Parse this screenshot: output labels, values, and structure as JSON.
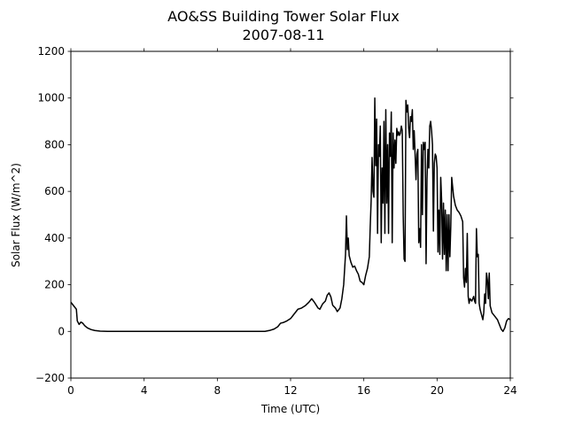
{
  "chart_data": {
    "type": "line",
    "title": "AO&SS Building Tower Solar Flux",
    "subtitle": "2007-08-11",
    "xlabel": "Time (UTC)",
    "ylabel": "Solar Flux (W/m^2)",
    "xlim": [
      0,
      24
    ],
    "ylim": [
      -200,
      1200
    ],
    "xticks": [
      0,
      4,
      8,
      12,
      16,
      20,
      24
    ],
    "yticks": [
      -200,
      0,
      200,
      400,
      600,
      800,
      1000,
      1200
    ],
    "grid": false,
    "line_color": "#000000",
    "series": [
      {
        "points": [
          [
            0.0,
            125
          ],
          [
            0.1,
            115
          ],
          [
            0.2,
            105
          ],
          [
            0.3,
            95
          ],
          [
            0.35,
            45
          ],
          [
            0.45,
            30
          ],
          [
            0.55,
            40
          ],
          [
            0.65,
            35
          ],
          [
            0.75,
            25
          ],
          [
            0.9,
            15
          ],
          [
            1.1,
            8
          ],
          [
            1.3,
            4
          ],
          [
            1.6,
            1
          ],
          [
            2.0,
            0
          ],
          [
            4.0,
            0
          ],
          [
            6.0,
            0
          ],
          [
            8.0,
            0
          ],
          [
            10.0,
            0
          ],
          [
            10.6,
            0
          ],
          [
            10.9,
            5
          ],
          [
            11.1,
            10
          ],
          [
            11.3,
            20
          ],
          [
            11.45,
            35
          ],
          [
            11.6,
            38
          ],
          [
            11.8,
            45
          ],
          [
            12.0,
            55
          ],
          [
            12.2,
            75
          ],
          [
            12.4,
            95
          ],
          [
            12.6,
            100
          ],
          [
            12.8,
            110
          ],
          [
            13.0,
            125
          ],
          [
            13.15,
            140
          ],
          [
            13.3,
            125
          ],
          [
            13.5,
            100
          ],
          [
            13.6,
            95
          ],
          [
            13.75,
            118
          ],
          [
            13.9,
            130
          ],
          [
            14.0,
            155
          ],
          [
            14.1,
            165
          ],
          [
            14.2,
            148
          ],
          [
            14.3,
            112
          ],
          [
            14.45,
            100
          ],
          [
            14.55,
            85
          ],
          [
            14.7,
            100
          ],
          [
            14.8,
            140
          ],
          [
            14.9,
            200
          ],
          [
            15.0,
            330
          ],
          [
            15.05,
            495
          ],
          [
            15.1,
            350
          ],
          [
            15.15,
            400
          ],
          [
            15.2,
            325
          ],
          [
            15.3,
            295
          ],
          [
            15.4,
            275
          ],
          [
            15.5,
            280
          ],
          [
            15.6,
            260
          ],
          [
            15.7,
            245
          ],
          [
            15.8,
            215
          ],
          [
            15.9,
            210
          ],
          [
            16.0,
            200
          ],
          [
            16.1,
            240
          ],
          [
            16.2,
            270
          ],
          [
            16.3,
            320
          ],
          [
            16.35,
            450
          ],
          [
            16.4,
            560
          ],
          [
            16.45,
            745
          ],
          [
            16.5,
            600
          ],
          [
            16.55,
            575
          ],
          [
            16.6,
            1000
          ],
          [
            16.65,
            710
          ],
          [
            16.7,
            910
          ],
          [
            16.75,
            420
          ],
          [
            16.8,
            800
          ],
          [
            16.85,
            750
          ],
          [
            16.9,
            880
          ],
          [
            16.95,
            380
          ],
          [
            17.0,
            700
          ],
          [
            17.05,
            550
          ],
          [
            17.1,
            900
          ],
          [
            17.15,
            420
          ],
          [
            17.2,
            950
          ],
          [
            17.25,
            550
          ],
          [
            17.3,
            800
          ],
          [
            17.35,
            420
          ],
          [
            17.4,
            850
          ],
          [
            17.45,
            750
          ],
          [
            17.5,
            940
          ],
          [
            17.55,
            380
          ],
          [
            17.6,
            850
          ],
          [
            17.65,
            700
          ],
          [
            17.7,
            820
          ],
          [
            17.75,
            720
          ],
          [
            17.8,
            870
          ],
          [
            17.85,
            840
          ],
          [
            17.9,
            855
          ],
          [
            17.95,
            840
          ],
          [
            18.0,
            850
          ],
          [
            18.05,
            880
          ],
          [
            18.1,
            860
          ],
          [
            18.15,
            500
          ],
          [
            18.2,
            310
          ],
          [
            18.25,
            300
          ],
          [
            18.3,
            990
          ],
          [
            18.35,
            940
          ],
          [
            18.4,
            970
          ],
          [
            18.45,
            870
          ],
          [
            18.5,
            830
          ],
          [
            18.55,
            920
          ],
          [
            18.6,
            900
          ],
          [
            18.65,
            950
          ],
          [
            18.7,
            780
          ],
          [
            18.75,
            860
          ],
          [
            18.8,
            760
          ],
          [
            18.85,
            650
          ],
          [
            18.9,
            760
          ],
          [
            18.95,
            780
          ],
          [
            19.0,
            380
          ],
          [
            19.05,
            440
          ],
          [
            19.1,
            360
          ],
          [
            19.15,
            800
          ],
          [
            19.2,
            500
          ],
          [
            19.25,
            810
          ],
          [
            19.3,
            780
          ],
          [
            19.35,
            810
          ],
          [
            19.4,
            290
          ],
          [
            19.45,
            650
          ],
          [
            19.5,
            780
          ],
          [
            19.55,
            700
          ],
          [
            19.6,
            880
          ],
          [
            19.65,
            900
          ],
          [
            19.7,
            860
          ],
          [
            19.75,
            800
          ],
          [
            19.8,
            430
          ],
          [
            19.85,
            720
          ],
          [
            19.9,
            760
          ],
          [
            19.95,
            750
          ],
          [
            20.0,
            700
          ],
          [
            20.05,
            340
          ],
          [
            20.1,
            520
          ],
          [
            20.15,
            330
          ],
          [
            20.2,
            660
          ],
          [
            20.25,
            560
          ],
          [
            20.3,
            310
          ],
          [
            20.35,
            550
          ],
          [
            20.4,
            330
          ],
          [
            20.45,
            520
          ],
          [
            20.5,
            260
          ],
          [
            20.55,
            500
          ],
          [
            20.6,
            260
          ],
          [
            20.65,
            500
          ],
          [
            20.7,
            320
          ],
          [
            20.75,
            450
          ],
          [
            20.8,
            660
          ],
          [
            20.85,
            620
          ],
          [
            20.9,
            580
          ],
          [
            20.95,
            560
          ],
          [
            21.0,
            540
          ],
          [
            21.1,
            520
          ],
          [
            21.2,
            510
          ],
          [
            21.3,
            495
          ],
          [
            21.4,
            470
          ],
          [
            21.45,
            230
          ],
          [
            21.5,
            190
          ],
          [
            21.55,
            270
          ],
          [
            21.6,
            210
          ],
          [
            21.65,
            420
          ],
          [
            21.7,
            150
          ],
          [
            21.75,
            120
          ],
          [
            21.8,
            140
          ],
          [
            21.9,
            130
          ],
          [
            22.0,
            150
          ],
          [
            22.05,
            130
          ],
          [
            22.1,
            120
          ],
          [
            22.15,
            440
          ],
          [
            22.2,
            320
          ],
          [
            22.25,
            330
          ],
          [
            22.3,
            120
          ],
          [
            22.35,
            95
          ],
          [
            22.4,
            80
          ],
          [
            22.5,
            50
          ],
          [
            22.55,
            80
          ],
          [
            22.6,
            160
          ],
          [
            22.65,
            120
          ],
          [
            22.7,
            250
          ],
          [
            22.75,
            220
          ],
          [
            22.8,
            140
          ],
          [
            22.85,
            250
          ],
          [
            22.9,
            110
          ],
          [
            23.0,
            80
          ],
          [
            23.1,
            70
          ],
          [
            23.2,
            60
          ],
          [
            23.3,
            50
          ],
          [
            23.4,
            30
          ],
          [
            23.5,
            10
          ],
          [
            23.6,
            0
          ],
          [
            23.7,
            15
          ],
          [
            23.8,
            45
          ],
          [
            23.9,
            55
          ],
          [
            24.0,
            50
          ]
        ]
      }
    ]
  }
}
